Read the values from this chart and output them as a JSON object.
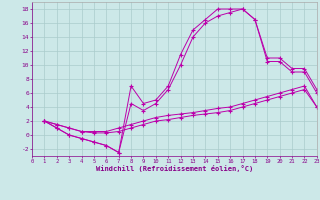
{
  "xlabel": "Windchill (Refroidissement éolien,°C)",
  "bg_color": "#cce8e8",
  "grid_color": "#aacccc",
  "line_color": "#bb00aa",
  "xlim": [
    0,
    23
  ],
  "ylim": [
    -3,
    19
  ],
  "xticks": [
    0,
    1,
    2,
    3,
    4,
    5,
    6,
    7,
    8,
    9,
    10,
    11,
    12,
    13,
    14,
    15,
    16,
    17,
    18,
    19,
    20,
    21,
    22,
    23
  ],
  "yticks": [
    -2,
    0,
    2,
    4,
    6,
    8,
    10,
    12,
    14,
    16,
    18
  ],
  "c1x": [
    1,
    2,
    3,
    4,
    5,
    6,
    7,
    8,
    9,
    10,
    11,
    12,
    13,
    14,
    15,
    16,
    17,
    18,
    19,
    20,
    21,
    22,
    23
  ],
  "c1y": [
    2,
    1,
    0,
    -0.5,
    -1,
    -1.5,
    -2.5,
    7,
    4.5,
    5,
    7,
    11.5,
    15,
    16.5,
    18,
    18,
    18,
    16.5,
    11,
    11,
    9.5,
    9.5,
    6.5
  ],
  "c2x": [
    1,
    2,
    3,
    4,
    5,
    6,
    7,
    8,
    9,
    10,
    11,
    12,
    13,
    14,
    15,
    16,
    17,
    18,
    19,
    20,
    21,
    22,
    23
  ],
  "c2y": [
    2,
    1,
    0,
    -0.5,
    -1,
    -1.5,
    -2.5,
    4.5,
    3.5,
    4.5,
    6.5,
    10,
    14,
    16,
    17,
    17.5,
    18,
    16.5,
    10.5,
    10.5,
    9,
    9,
    6
  ],
  "c3x": [
    1,
    2,
    3,
    4,
    5,
    6,
    7,
    8,
    9,
    10,
    11,
    12,
    13,
    14,
    15,
    16,
    17,
    18,
    19,
    20,
    21,
    22,
    23
  ],
  "c3y": [
    2,
    1.5,
    1,
    0.5,
    0.5,
    0.5,
    1,
    1.5,
    2,
    2.5,
    2.8,
    3,
    3.2,
    3.5,
    3.8,
    4,
    4.5,
    5,
    5.5,
    6,
    6.5,
    7,
    4
  ],
  "c4x": [
    1,
    2,
    3,
    4,
    5,
    6,
    7,
    8,
    9,
    10,
    11,
    12,
    13,
    14,
    15,
    16,
    17,
    18,
    19,
    20,
    21,
    22,
    23
  ],
  "c4y": [
    2,
    1.5,
    1,
    0.5,
    0.3,
    0.3,
    0.5,
    1,
    1.5,
    2,
    2.2,
    2.5,
    2.8,
    3,
    3.2,
    3.5,
    4,
    4.5,
    5,
    5.5,
    6,
    6.5,
    4
  ]
}
